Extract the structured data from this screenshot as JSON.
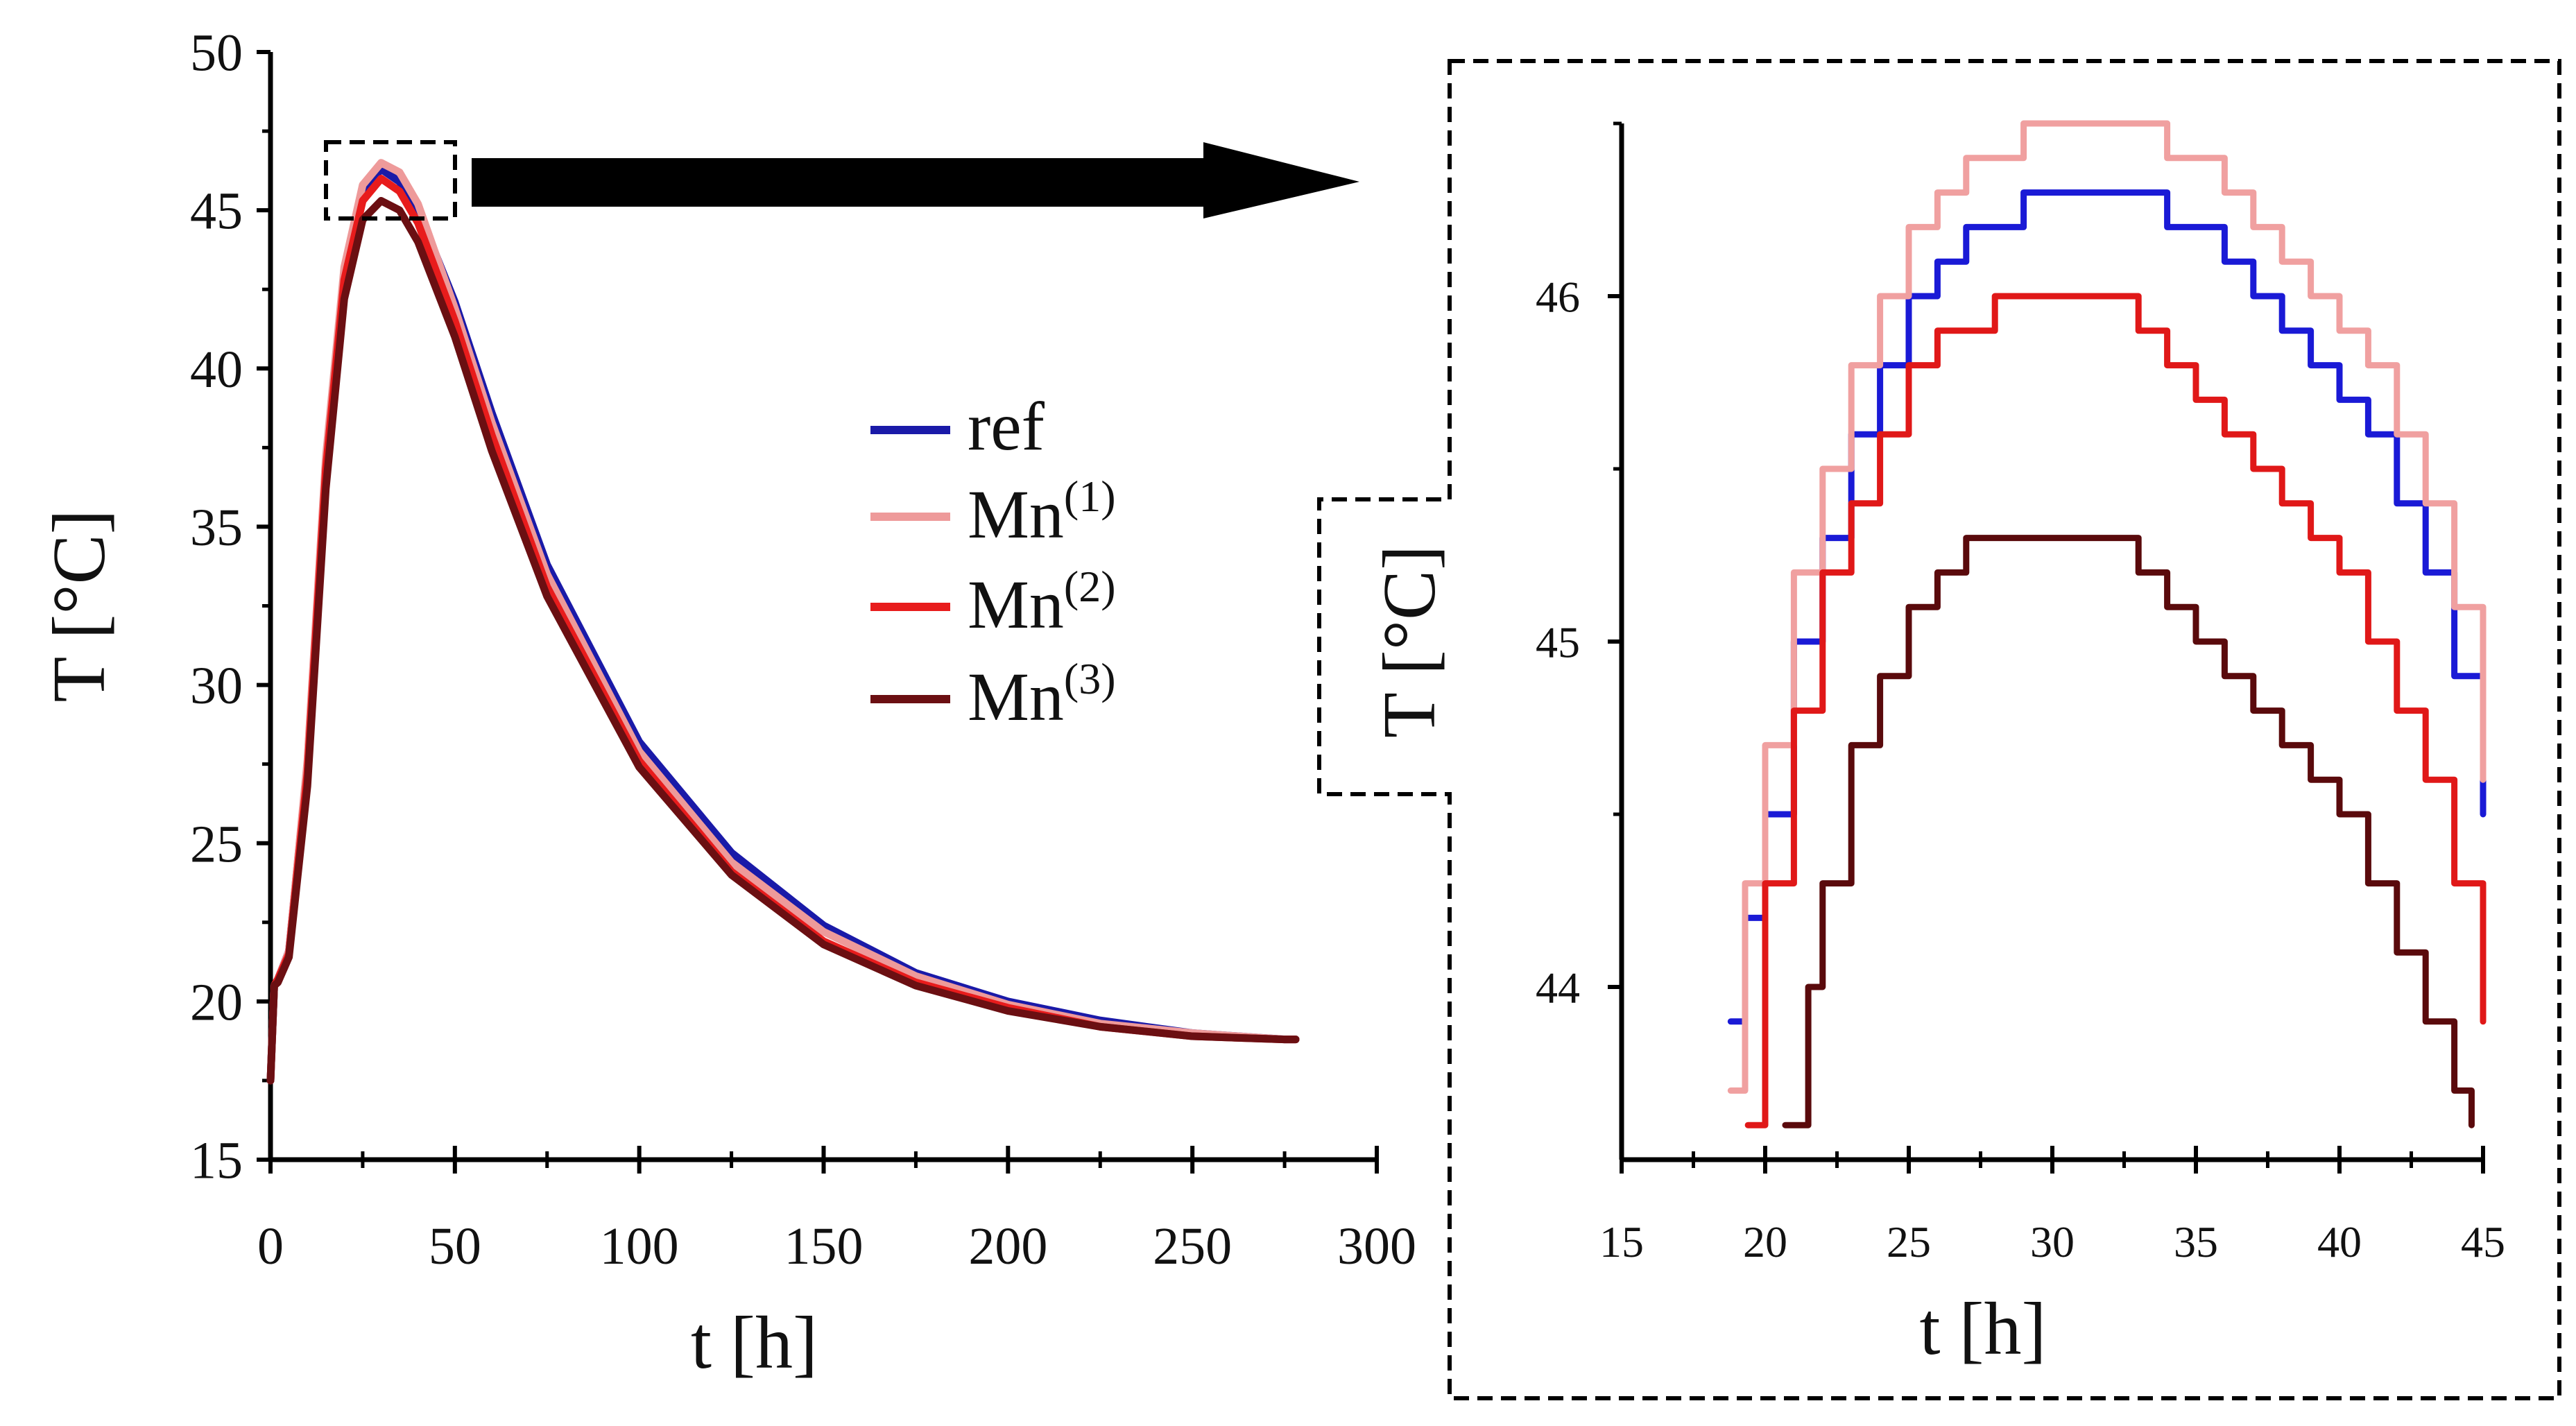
{
  "chart_data": [
    {
      "type": "line",
      "title": "",
      "xlabel": "t [h]",
      "ylabel": "T [°C]",
      "xlim": [
        0,
        300
      ],
      "ylim": [
        15,
        50
      ],
      "x_ticks": [
        0,
        50,
        100,
        150,
        200,
        250,
        300
      ],
      "y_ticks": [
        15,
        20,
        25,
        30,
        35,
        40,
        45,
        50
      ],
      "legend_placement": "center-right",
      "grid": false,
      "series": [
        {
          "name": "ref",
          "color": "#1a1aa8",
          "x": [
            0,
            1,
            2,
            5,
            10,
            15,
            20,
            25,
            30,
            35,
            40,
            50,
            60,
            75,
            100,
            125,
            150,
            175,
            200,
            225,
            250,
            275,
            278
          ],
          "y": [
            17.5,
            20.5,
            20.7,
            21.6,
            27.5,
            37.0,
            43.0,
            45.6,
            46.3,
            45.9,
            45.0,
            42.1,
            38.6,
            33.8,
            28.2,
            24.7,
            22.4,
            20.9,
            20.0,
            19.4,
            19.0,
            18.8,
            18.8
          ]
        },
        {
          "name": "Mn(1)",
          "color": "#ee9a9a",
          "x": [
            0,
            1,
            2,
            5,
            10,
            15,
            20,
            25,
            30,
            35,
            40,
            50,
            60,
            75,
            100,
            125,
            150,
            175,
            200,
            225,
            250,
            275,
            278
          ],
          "y": [
            17.5,
            20.5,
            20.7,
            21.6,
            27.6,
            37.2,
            43.2,
            45.8,
            46.5,
            46.2,
            45.2,
            41.9,
            38.3,
            33.5,
            27.9,
            24.4,
            22.2,
            20.8,
            19.9,
            19.3,
            19.0,
            18.8,
            18.8
          ]
        },
        {
          "name": "Mn(2)",
          "color": "#e81c1c",
          "x": [
            0,
            1,
            2,
            5,
            10,
            15,
            20,
            25,
            30,
            35,
            40,
            50,
            60,
            75,
            100,
            125,
            150,
            175,
            200,
            225,
            250,
            275,
            278
          ],
          "y": [
            17.5,
            20.5,
            20.7,
            21.5,
            27.2,
            36.8,
            42.8,
            45.3,
            46.0,
            45.6,
            44.6,
            41.5,
            37.9,
            33.1,
            27.6,
            24.1,
            21.9,
            20.6,
            19.8,
            19.2,
            18.9,
            18.8,
            18.8
          ]
        },
        {
          "name": "Mn(3)",
          "color": "#6b0f12",
          "x": [
            0,
            1,
            2,
            5,
            10,
            15,
            20,
            25,
            30,
            35,
            40,
            50,
            60,
            75,
            100,
            125,
            150,
            175,
            200,
            225,
            250,
            275,
            278
          ],
          "y": [
            17.5,
            20.5,
            20.6,
            21.4,
            26.8,
            36.2,
            42.2,
            44.7,
            45.3,
            45.0,
            44.0,
            41.0,
            37.4,
            32.8,
            27.4,
            24.0,
            21.8,
            20.5,
            19.7,
            19.2,
            18.9,
            18.8,
            18.8
          ]
        }
      ]
    },
    {
      "type": "line",
      "title": "",
      "xlabel": "t [h]",
      "ylabel": "T [°C]",
      "xlim": [
        15,
        45
      ],
      "ylim": [
        43.5,
        46.5
      ],
      "x_ticks": [
        15,
        20,
        25,
        30,
        35,
        40,
        45
      ],
      "y_ticks": [
        44,
        45,
        46
      ],
      "grid": false,
      "step_lines": true,
      "series": [
        {
          "name": "ref",
          "color": "#1a1ad6",
          "x": [
            18.8,
            19.3,
            20.0,
            21.0,
            22.0,
            23.0,
            24.0,
            25.0,
            26.0,
            27.0,
            28.0,
            29.0,
            30.0,
            31.0,
            32.0,
            33.0,
            34.0,
            35.0,
            36.0,
            37.0,
            38.0,
            39.0,
            40.0,
            41.0,
            42.0,
            43.0,
            44.0,
            45.0
          ],
          "y": [
            43.9,
            44.2,
            44.5,
            45.0,
            45.3,
            45.6,
            45.8,
            46.0,
            46.1,
            46.2,
            46.2,
            46.3,
            46.3,
            46.3,
            46.3,
            46.3,
            46.2,
            46.2,
            46.1,
            46.0,
            45.9,
            45.8,
            45.7,
            45.6,
            45.4,
            45.2,
            44.9,
            44.5
          ]
        },
        {
          "name": "Mn(1)",
          "color": "#f0a0a0",
          "x": [
            18.8,
            19.3,
            20.0,
            21.0,
            22.0,
            23.0,
            24.0,
            25.0,
            26.0,
            27.0,
            28.0,
            29.0,
            30.0,
            31.0,
            32.0,
            33.0,
            34.0,
            35.0,
            36.0,
            37.0,
            38.0,
            39.0,
            40.0,
            41.0,
            42.0,
            43.0,
            44.0,
            45.0
          ],
          "y": [
            43.7,
            44.3,
            44.7,
            45.2,
            45.5,
            45.8,
            46.0,
            46.2,
            46.3,
            46.4,
            46.4,
            46.5,
            46.5,
            46.5,
            46.5,
            46.5,
            46.4,
            46.4,
            46.3,
            46.2,
            46.1,
            46.0,
            45.9,
            45.8,
            45.6,
            45.4,
            45.1,
            44.6
          ]
        },
        {
          "name": "Mn(2)",
          "color": "#e01818",
          "x": [
            19.4,
            20.0,
            21.0,
            22.0,
            23.0,
            24.0,
            25.0,
            26.0,
            27.0,
            28.0,
            29.0,
            30.0,
            31.0,
            32.0,
            33.0,
            34.0,
            35.0,
            36.0,
            37.0,
            38.0,
            39.0,
            40.0,
            41.0,
            42.0,
            43.0,
            44.0,
            45.0
          ],
          "y": [
            43.6,
            44.3,
            44.8,
            45.2,
            45.4,
            45.6,
            45.8,
            45.9,
            45.9,
            46.0,
            46.0,
            46.0,
            46.0,
            46.0,
            45.9,
            45.8,
            45.7,
            45.6,
            45.5,
            45.4,
            45.3,
            45.2,
            45.0,
            44.8,
            44.6,
            44.3,
            43.9
          ]
        },
        {
          "name": "Mn(3)",
          "color": "#5a0a0c",
          "x": [
            20.7,
            21.5,
            22.0,
            23.0,
            24.0,
            25.0,
            26.0,
            27.0,
            28.0,
            29.0,
            30.0,
            31.0,
            32.0,
            33.0,
            34.0,
            35.0,
            36.0,
            37.0,
            38.0,
            39.0,
            40.0,
            41.0,
            42.0,
            43.0,
            44.0,
            44.6
          ],
          "y": [
            43.6,
            44.0,
            44.3,
            44.7,
            44.9,
            45.1,
            45.2,
            45.3,
            45.3,
            45.3,
            45.3,
            45.3,
            45.3,
            45.2,
            45.1,
            45.0,
            44.9,
            44.8,
            44.7,
            44.6,
            44.5,
            44.3,
            44.1,
            43.9,
            43.7,
            43.6
          ]
        }
      ]
    }
  ],
  "legend": {
    "entries": [
      {
        "text": "ref",
        "sup": "",
        "color": "#1a1aa8"
      },
      {
        "text": "Mn",
        "sup": "(1)",
        "color": "#ee9a9a"
      },
      {
        "text": "Mn",
        "sup": "(2)",
        "color": "#e81c1c"
      },
      {
        "text": "Mn",
        "sup": "(3)",
        "color": "#6b0f12"
      }
    ]
  }
}
